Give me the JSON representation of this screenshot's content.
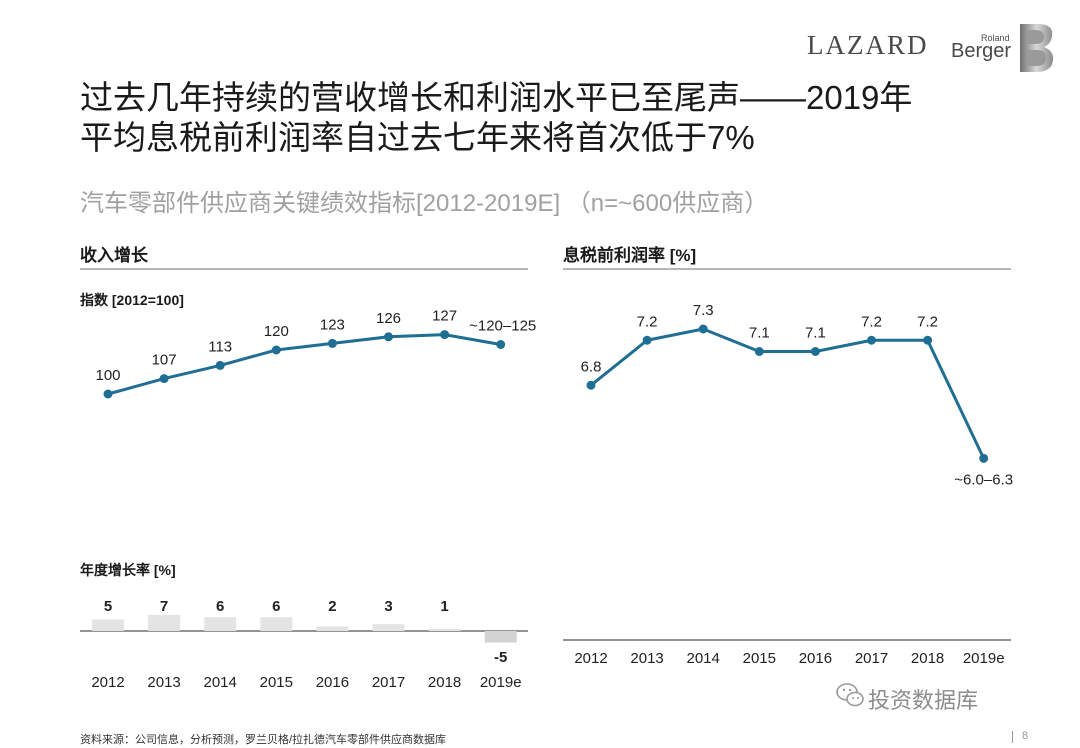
{
  "logos": {
    "lazard": "LAZARD",
    "rb_small": "Roland",
    "rb_big": "Berger"
  },
  "title_line1": "过去几年持续的营收增长和利润水平已至尾声——2019年",
  "title_line2": "平均息税前利润率自过去七年来将首次低于7%",
  "subtitle": "汽车零部件供应商关键绩效指标[2012-2019E] （n=~600供应商）",
  "left_panel": {
    "heading": "收入增长",
    "index_label": "指数 [2012=100]",
    "growth_label": "年度增长率 [%]"
  },
  "right_panel": {
    "heading": "息税前利润率 [%]"
  },
  "chart_data": [
    {
      "type": "line",
      "title": "收入增长",
      "ylabel": "指数 [2012=100]",
      "categories": [
        "2012",
        "2013",
        "2014",
        "2015",
        "2016",
        "2017",
        "2018",
        "2019e"
      ],
      "values": [
        100,
        107,
        113,
        120,
        123,
        126,
        127,
        122.5
      ],
      "labels": [
        "100",
        "107",
        "113",
        "120",
        "123",
        "126",
        "127",
        "~120–125"
      ],
      "ylim": [
        95,
        135
      ]
    },
    {
      "type": "bar",
      "title": "年度增长率 [%]",
      "categories": [
        "2012",
        "2013",
        "2014",
        "2015",
        "2016",
        "2017",
        "2018",
        "2019e"
      ],
      "values": [
        5,
        7,
        6,
        6,
        2,
        3,
        1,
        -5
      ],
      "labels": [
        "5",
        "7",
        "6",
        "6",
        "2",
        "3",
        "1",
        "-5"
      ]
    },
    {
      "type": "line",
      "title": "息税前利润率 [%]",
      "categories": [
        "2012",
        "2013",
        "2014",
        "2015",
        "2016",
        "2017",
        "2018",
        "2019e"
      ],
      "values": [
        6.8,
        7.2,
        7.3,
        7.1,
        7.1,
        7.2,
        7.2,
        6.15
      ],
      "labels": [
        "6.8",
        "7.2",
        "7.3",
        "7.1",
        "7.1",
        "7.2",
        "7.2",
        "~6.0–6.3"
      ],
      "ylim": [
        5.5,
        8.0
      ]
    }
  ],
  "colors": {
    "line": "#1f6e93",
    "bar_pos": "#e4e4e4",
    "bar_neg": "#d3d3d3",
    "rule": "#b7b7b7"
  },
  "footer": "资料来源：公司信息，分析预测，罗兰贝格/拉扎德汽车零部件供应商数据库",
  "page_number": "8",
  "watermark": "投资数据库"
}
